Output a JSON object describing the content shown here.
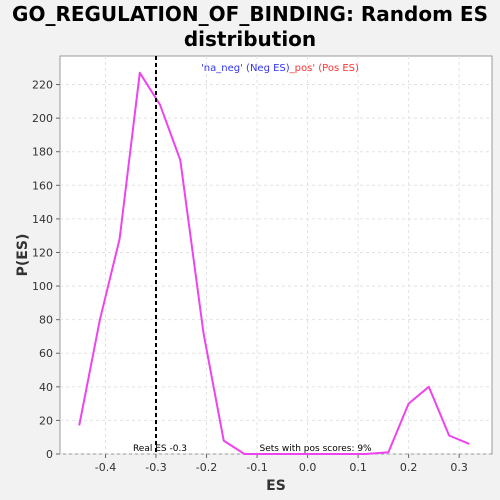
{
  "chart_data": {
    "type": "line",
    "title_lines": [
      "GO_REGULATION_OF_BINDING: Random ES",
      "distribution"
    ],
    "xlabel": "ES",
    "ylabel": "P(ES)",
    "xlim": [
      -0.49,
      0.365
    ],
    "ylim": [
      0,
      237
    ],
    "x_ticks": [
      -0.4,
      -0.3,
      -0.2,
      -0.1,
      0.0,
      0.1,
      0.2,
      0.3
    ],
    "x_tick_labels": [
      "-0.4",
      "-0.3",
      "-0.2",
      "-0.1",
      "0.0",
      "0.1",
      "0.2",
      "0.3"
    ],
    "y_ticks": [
      0,
      20,
      40,
      60,
      80,
      100,
      120,
      140,
      160,
      180,
      200,
      220
    ],
    "y_tick_labels": [
      "0",
      "20",
      "40",
      "60",
      "80",
      "100",
      "120",
      "140",
      "160",
      "180",
      "200",
      "220"
    ],
    "grid": true,
    "legend": {
      "placement": "top-center",
      "neg_text": "'na_neg' (Neg ES)",
      "pos_text": "_pos' (Pos ES)",
      "neg_color": "#3333ff",
      "pos_color": "#ff3333"
    },
    "series": [
      {
        "color": "#ee44ee",
        "x": [
          -0.452,
          -0.411,
          -0.372,
          -0.332,
          -0.292,
          -0.252,
          -0.206,
          -0.166,
          -0.125,
          -0.085,
          -0.045,
          -0.005,
          0.035,
          0.075,
          0.115,
          0.16,
          0.2,
          0.24,
          0.28,
          0.32
        ],
        "y": [
          17,
          80,
          128,
          227,
          208,
          175,
          72,
          8,
          0,
          0,
          0,
          0,
          0,
          0,
          0,
          1,
          30,
          40,
          11,
          6
        ]
      }
    ],
    "real_es": {
      "x": -0.3,
      "label": "Real ES -0.3",
      "color": "#000000"
    },
    "annotation": "Sets with pos scores: 9%"
  }
}
